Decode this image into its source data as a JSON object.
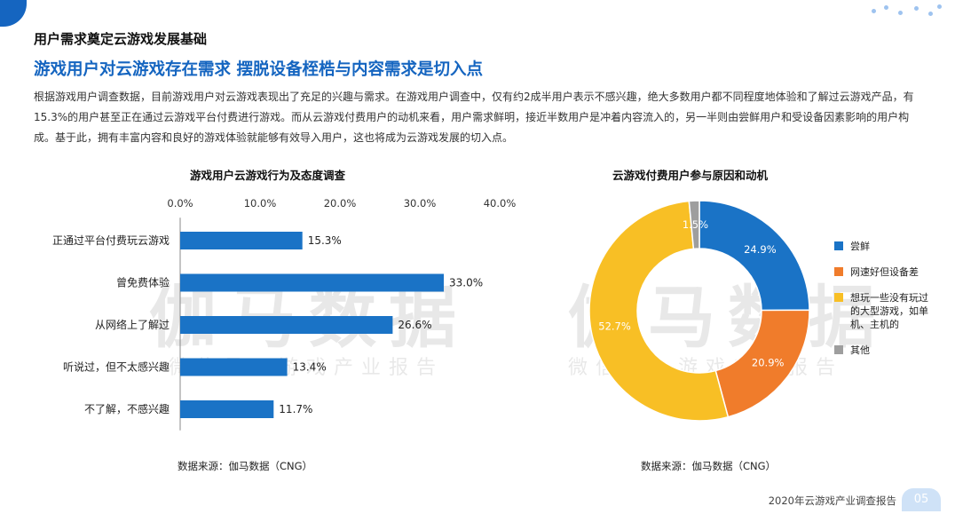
{
  "header": {
    "subtitle": "用户需求奠定云游戏发展基础",
    "headline": "游戏用户对云游戏存在需求  摆脱设备桎梏与内容需求是切入点"
  },
  "body_text": "根据游戏用户调查数据，目前游戏用户对云游戏表现出了充足的兴趣与需求。在游戏用户调查中，仅有约2成半用户表示不感兴趣，绝大多数用户都不同程度地体验和了解过云游戏产品，有15.3%的用户甚至正在通过云游戏平台付费进行游戏。而从云游戏付费用户的动机来看，用户需求鲜明，接近半数用户是冲着内容流入的，另一半则由尝鲜用户和受设备因素影响的用户构成。基于此，拥有丰富内容和良好的游戏体验就能够有效导入用户，这也将成为云游戏发展的切入点。",
  "watermark": {
    "left_big": "伽马数据",
    "left_small": "微信号：游戏产业报告",
    "right_big": "伽马数据",
    "right_small": "微信号：游戏产业报告"
  },
  "chart_data": [
    {
      "type": "bar",
      "orientation": "horizontal",
      "title": "游戏用户云游戏行为及态度调查",
      "categories": [
        "正通过平台付费玩云游戏",
        "曾免费体验",
        "从网络上了解过",
        "听说过，但不太感兴趣",
        "不了解，不感兴趣"
      ],
      "values": [
        15.3,
        33.0,
        26.6,
        13.4,
        11.7
      ],
      "value_labels": [
        "15.3%",
        "33.0%",
        "26.6%",
        "13.4%",
        "11.7%"
      ],
      "xlim": [
        0,
        40
      ],
      "ticks": [
        "0.0%",
        "10.0%",
        "20.0%",
        "30.0%",
        "40.0%"
      ],
      "axis_position": "top",
      "grid": false,
      "color": "#1a73c6",
      "source": "数据来源：伽马数据（CNG）"
    },
    {
      "type": "pie",
      "donut": true,
      "title": "云游戏付费用户参与原因和动机",
      "labels": [
        "尝鲜",
        "网速好但设备差",
        "想玩一些没有玩过的大型游戏，如单机、主机的",
        "其他"
      ],
      "values": [
        24.9,
        20.9,
        52.7,
        1.5
      ],
      "value_labels": [
        "24.9%",
        "20.9%",
        "52.7%",
        "1.5%"
      ],
      "colors": [
        "#1a73c6",
        "#f07c2b",
        "#f8bf25",
        "#9e9e9e"
      ],
      "legend_position": "right",
      "source": "数据来源：伽马数据（CNG）"
    }
  ],
  "footer": {
    "report_title": "2020年云游戏产业调查报告",
    "page_number": "05"
  }
}
